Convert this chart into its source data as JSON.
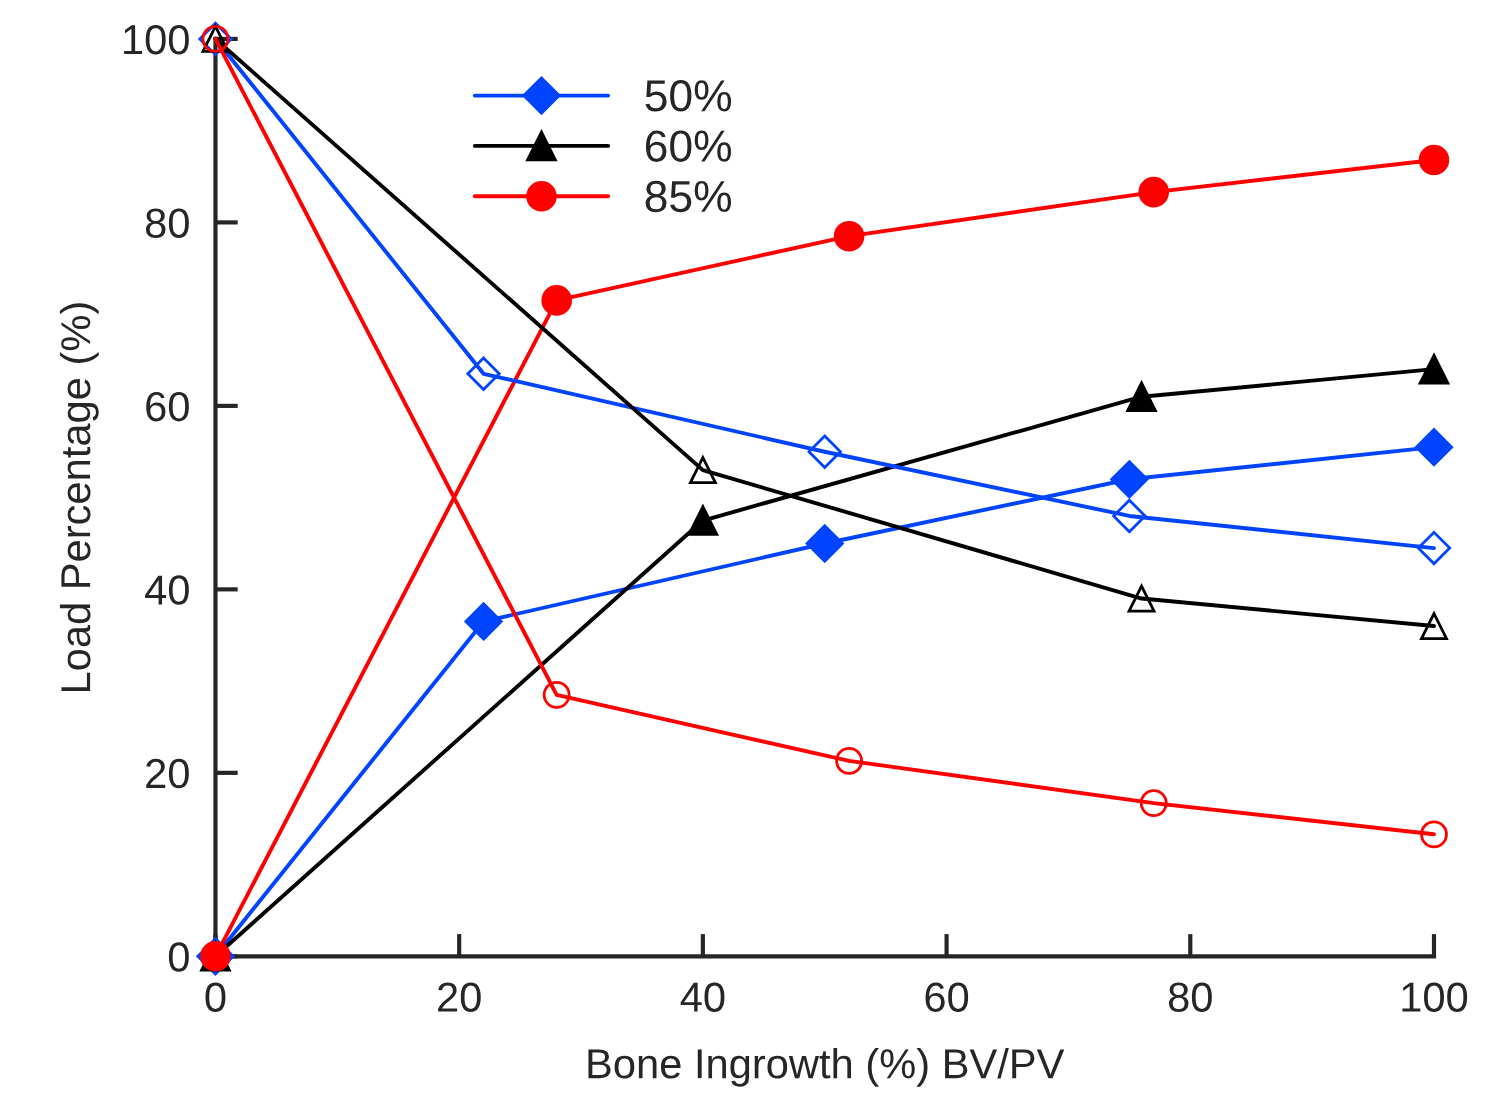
{
  "chart_data": {
    "type": "line",
    "xlabel": "Bone Ingrowth (%) BV/PV",
    "ylabel": "Load Percentage (%)",
    "xlim": [
      0,
      100
    ],
    "ylim": [
      0,
      100
    ],
    "xticks": [
      0,
      20,
      40,
      60,
      80,
      100
    ],
    "yticks": [
      0,
      20,
      40,
      60,
      80,
      100
    ],
    "grid": false,
    "legend": "top left",
    "line_style": "solid",
    "series": [
      {
        "name": "50%",
        "color": "#0044ff",
        "marker": "diamond",
        "x": [
          0,
          22,
          50,
          75,
          100
        ],
        "values": [
          0,
          36.5,
          45,
          52,
          55.5
        ]
      },
      {
        "name": "60%",
        "color": "#000000",
        "marker": "triangle",
        "x": [
          0,
          40,
          76,
          100
        ],
        "values": [
          0,
          47.5,
          61,
          64
        ]
      },
      {
        "name": "85%",
        "color": "#ff0000",
        "marker": "circle",
        "x": [
          0,
          28,
          52,
          77,
          100
        ],
        "values": [
          0,
          71.5,
          78.5,
          83.3,
          86.8
        ]
      },
      {
        "color": "#0044ff",
        "marker": "diamond",
        "x": [
          0,
          22,
          50,
          75,
          100
        ],
        "values": [
          100,
          63.5,
          55,
          48,
          44.5
        ]
      },
      {
        "color": "#000000",
        "marker": "triangle",
        "x": [
          0,
          40,
          76,
          100
        ],
        "values": [
          100,
          53,
          39,
          36
        ]
      },
      {
        "color": "#ff0000",
        "marker": "circle",
        "x": [
          0,
          28,
          52,
          77,
          100
        ],
        "values": [
          100,
          28.5,
          21.3,
          16.7,
          13.3
        ]
      }
    ]
  }
}
